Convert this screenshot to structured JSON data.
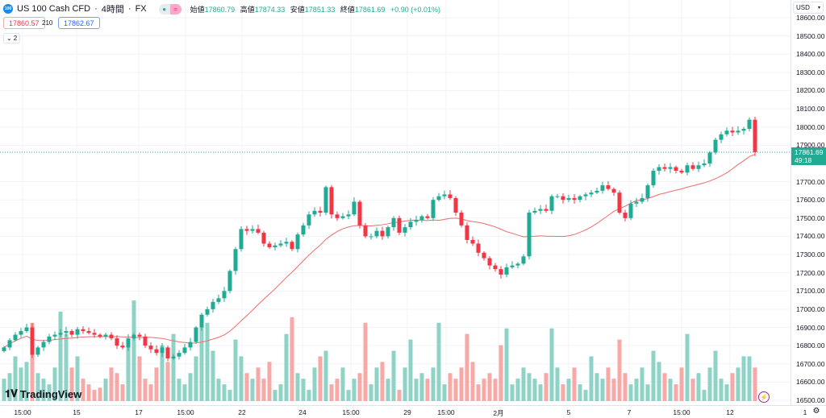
{
  "symbol": {
    "icon_text": "100",
    "name": "US 100 Cash CFD",
    "interval": "4時間",
    "exchange": "FX"
  },
  "ohlc": {
    "open_label": "始値",
    "open": "17860.79",
    "high_label": "高値",
    "high": "17874.33",
    "low_label": "安値",
    "low": "17851.33",
    "close_label": "終値",
    "close": "17861.69",
    "change": "+0.90 (+0.01%)"
  },
  "quote": {
    "bid": "17860.57",
    "spread": "210",
    "ask": "17862.67"
  },
  "indicators_toggle": "2",
  "currency": "USD",
  "last_price": {
    "value": "17861.69",
    "countdown": "49:18"
  },
  "price_axis": [
    "18600.00",
    "18500.00",
    "18400.00",
    "18300.00",
    "18200.00",
    "18100.00",
    "18000.00",
    "17900.00",
    "17700.00",
    "17600.00",
    "17500.00",
    "17400.00",
    "17300.00",
    "17200.00",
    "17100.00",
    "17000.00",
    "16900.00",
    "16800.00",
    "16700.00",
    "16600.00",
    "16500.00"
  ],
  "time_axis": [
    "15:00",
    "15",
    "17",
    "15:00",
    "22",
    "24",
    "15:00",
    "29",
    "15:00",
    "2月",
    "5",
    "7",
    "15:00",
    "12",
    "1"
  ],
  "brand": "TradingView",
  "colors": {
    "up": "#22ab94",
    "down": "#f23645",
    "up_vol": "#8fd3c7",
    "down_vol": "#f7a9a7",
    "ma": "#f06b6b"
  },
  "chart_data": {
    "type": "candlestick",
    "ylim": [
      16500,
      18600
    ],
    "closes": [
      16790,
      16830,
      16860,
      16880,
      16900,
      16750,
      16790,
      16820,
      16850,
      16860,
      16870,
      16880,
      16860,
      16890,
      16880,
      16870,
      16860,
      16850,
      16860,
      16840,
      16800,
      16790,
      16840,
      16860,
      16850,
      16800,
      16780,
      16760,
      16790,
      16730,
      16740,
      16760,
      16790,
      16820,
      16900,
      16970,
      17000,
      17040,
      17060,
      17100,
      17210,
      17330,
      17440,
      17430,
      17440,
      17420,
      17360,
      17340,
      17350,
      17360,
      17370,
      17330,
      17410,
      17460,
      17520,
      17540,
      17530,
      17670,
      17520,
      17500,
      17510,
      17520,
      17590,
      17460,
      17400,
      17400,
      17430,
      17400,
      17450,
      17500,
      17420,
      17450,
      17480,
      17490,
      17510,
      17500,
      17600,
      17620,
      17630,
      17610,
      17530,
      17460,
      17380,
      17360,
      17310,
      17280,
      17240,
      17220,
      17190,
      17230,
      17240,
      17250,
      17290,
      17530,
      17540,
      17550,
      17540,
      17620,
      17620,
      17600,
      17610,
      17600,
      17620,
      17630,
      17640,
      17650,
      17680,
      17660,
      17640,
      17530,
      17500,
      17580,
      17590,
      17610,
      17680,
      17760,
      17780,
      17770,
      17780,
      17760,
      17750,
      17790,
      17770,
      17790,
      17800,
      17860,
      17930,
      17960,
      17980,
      17970,
      17980,
      17990,
      18040,
      17862
    ],
    "volumes": [
      20,
      25,
      40,
      30,
      35,
      70,
      25,
      20,
      15,
      30,
      80,
      60,
      30,
      40,
      20,
      15,
      10,
      12,
      20,
      30,
      25,
      15,
      55,
      90,
      40,
      20,
      15,
      30,
      50,
      35,
      60,
      20,
      15,
      25,
      40,
      75,
      70,
      45,
      20,
      15,
      10,
      55,
      40,
      25,
      20,
      30,
      20,
      35,
      10,
      15,
      60,
      75,
      25,
      20,
      10,
      30,
      40,
      45,
      15,
      20,
      30,
      10,
      20,
      25,
      70,
      15,
      30,
      35,
      20,
      45,
      10,
      30,
      55,
      20,
      25,
      20,
      30,
      70,
      15,
      25,
      20,
      30,
      60,
      35,
      15,
      20,
      25,
      20,
      50,
      65,
      15,
      20,
      30,
      25,
      20,
      15,
      25,
      65,
      30,
      15,
      20,
      30,
      15,
      10,
      40,
      25,
      20,
      30,
      20,
      55,
      25,
      15,
      20,
      30,
      15,
      45,
      35,
      25,
      20,
      15,
      30,
      60,
      20,
      25,
      10,
      30,
      45,
      20,
      15,
      25,
      30,
      40,
      40,
      30
    ]
  }
}
